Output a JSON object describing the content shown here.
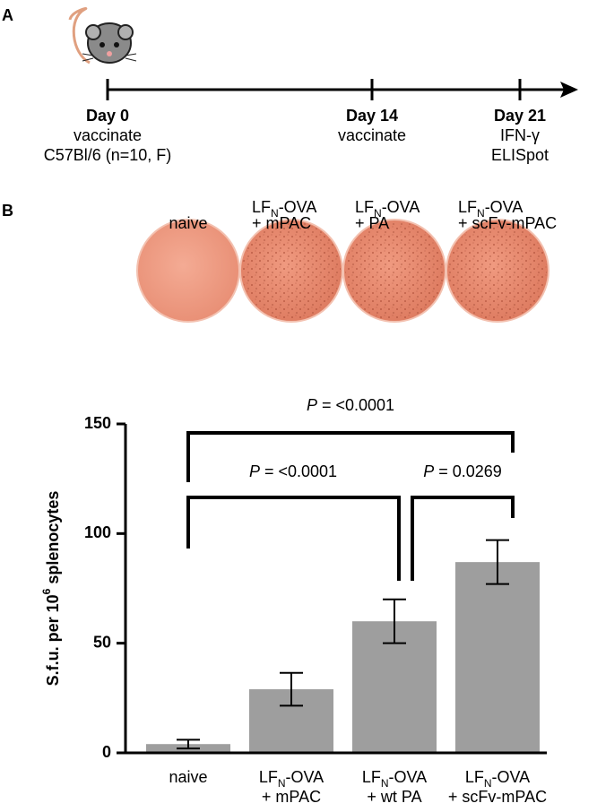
{
  "panel_labels": [
    "A",
    "B"
  ],
  "timeline": {
    "events": [
      {
        "day": "Day 0",
        "lines": [
          "vaccinate",
          "C57Bl/6 (n=10, F)"
        ]
      },
      {
        "day": "Day 14",
        "lines": [
          "vaccinate"
        ]
      },
      {
        "day": "Day 21",
        "lines": [
          "IFN-γ",
          "ELISpot"
        ]
      }
    ]
  },
  "wells": [
    [
      [
        "naive"
      ]
    ],
    [
      [
        "LF",
        "N",
        "-OVA"
      ],
      [
        "+ mPAC"
      ]
    ],
    [
      [
        "LF",
        "N",
        "-OVA"
      ],
      [
        "+ PA"
      ]
    ],
    [
      [
        "LF",
        "N",
        "-OVA"
      ],
      [
        "+ scFv-mPAC"
      ]
    ]
  ],
  "chart_data": {
    "type": "bar",
    "y_label": [
      "S.f.u. per 10",
      "6",
      " splenocytes"
    ],
    "categories": [
      [
        [
          "naive"
        ]
      ],
      [
        [
          "LF",
          "N",
          "-OVA"
        ],
        [
          "+ mPAC"
        ]
      ],
      [
        [
          "LF",
          "N",
          "-OVA"
        ],
        [
          "+ wt PA"
        ]
      ],
      [
        [
          "LF",
          "N",
          "-OVA"
        ],
        [
          "+ scFv-mPAC"
        ]
      ]
    ],
    "values": [
      4,
      29,
      60,
      87
    ],
    "errors": [
      2,
      7.5,
      10,
      10
    ],
    "color": "#9e9e9e",
    "ylim": [
      0,
      150
    ],
    "yticks": [
      0,
      50,
      100,
      150
    ],
    "annotations": [
      [
        "P",
        " = <0.0001"
      ],
      [
        "P",
        " = <0.0001"
      ],
      [
        "P",
        " = 0.0269"
      ]
    ]
  }
}
